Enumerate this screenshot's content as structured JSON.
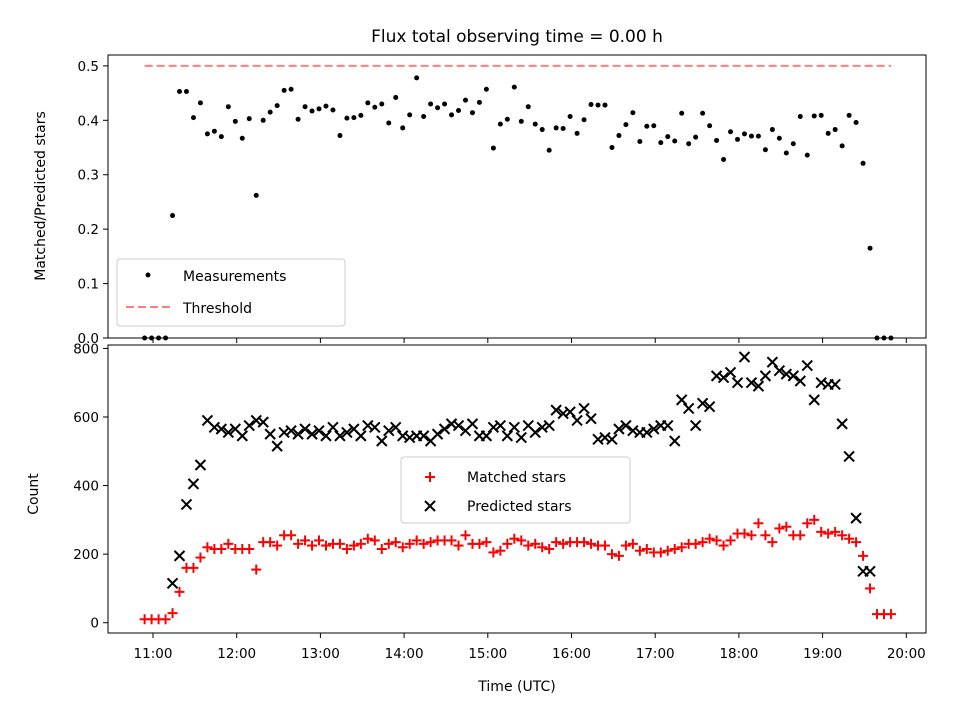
{
  "chart_data": [
    {
      "type": "scatter",
      "title": "Flux total observing time = 0.00 h",
      "ylabel": "Matched/Predicted stars",
      "xlabel": "",
      "ylim": [
        0,
        0.52
      ],
      "yticks": [
        "0.0",
        "0.1",
        "0.2",
        "0.3",
        "0.4",
        "0.5"
      ],
      "legend_position": "lower-left",
      "threshold": {
        "name": "Threshold",
        "value": 0.5,
        "x_start": "10:54",
        "x_end": "19:49",
        "color": "#ff7f7f",
        "style": "dashed"
      },
      "series": [
        {
          "name": "Measurements",
          "color": "#000000",
          "marker": "dot",
          "x": [
            "10:54",
            "10:59",
            "11:04",
            "11:09",
            "11:14",
            "11:19",
            "11:24",
            "11:29",
            "11:34",
            "11:39",
            "11:44",
            "11:49",
            "11:54",
            "11:59",
            "12:04",
            "12:09",
            "12:14",
            "12:19",
            "12:24",
            "12:29",
            "12:34",
            "12:39",
            "12:44",
            "12:49",
            "12:54",
            "12:59",
            "13:04",
            "13:09",
            "13:14",
            "13:19",
            "13:24",
            "13:29",
            "13:34",
            "13:39",
            "13:44",
            "13:49",
            "13:54",
            "13:59",
            "14:04",
            "14:09",
            "14:14",
            "14:19",
            "14:24",
            "14:29",
            "14:34",
            "14:39",
            "14:44",
            "14:49",
            "14:54",
            "14:59",
            "15:04",
            "15:09",
            "15:14",
            "15:19",
            "15:24",
            "15:29",
            "15:34",
            "15:39",
            "15:44",
            "15:49",
            "15:54",
            "15:59",
            "16:04",
            "16:09",
            "16:14",
            "16:19",
            "16:24",
            "16:29",
            "16:34",
            "16:39",
            "16:44",
            "16:49",
            "16:54",
            "16:59",
            "17:04",
            "17:09",
            "17:14",
            "17:19",
            "17:24",
            "17:29",
            "17:34",
            "17:39",
            "17:44",
            "17:49",
            "17:54",
            "17:59",
            "18:04",
            "18:09",
            "18:14",
            "18:19",
            "18:24",
            "18:29",
            "18:34",
            "18:39",
            "18:44",
            "18:49",
            "18:54",
            "18:59",
            "19:04",
            "19:09",
            "19:14",
            "19:19",
            "19:24",
            "19:29",
            "19:34",
            "19:39",
            "19:44",
            "19:49"
          ],
          "values": [
            0.0,
            0.0,
            0.0,
            0.0,
            0.225,
            0.453,
            0.453,
            0.405,
            0.432,
            0.375,
            0.38,
            0.37,
            0.425,
            0.398,
            0.367,
            0.403,
            0.262,
            0.4,
            0.415,
            0.427,
            0.455,
            0.457,
            0.402,
            0.425,
            0.417,
            0.421,
            0.426,
            0.419,
            0.372,
            0.404,
            0.405,
            0.409,
            0.432,
            0.424,
            0.43,
            0.395,
            0.442,
            0.386,
            0.41,
            0.478,
            0.407,
            0.43,
            0.423,
            0.43,
            0.41,
            0.418,
            0.437,
            0.414,
            0.433,
            0.457,
            0.349,
            0.393,
            0.402,
            0.461,
            0.398,
            0.425,
            0.393,
            0.383,
            0.345,
            0.386,
            0.385,
            0.407,
            0.376,
            0.401,
            0.429,
            0.428,
            0.428,
            0.35,
            0.372,
            0.392,
            0.414,
            0.361,
            0.389,
            0.39,
            0.359,
            0.37,
            0.362,
            0.413,
            0.357,
            0.369,
            0.413,
            0.39,
            0.363,
            0.328,
            0.379,
            0.365,
            0.375,
            0.371,
            0.371,
            0.346,
            0.383,
            0.367,
            0.34,
            0.357,
            0.407,
            0.336,
            0.408,
            0.409,
            0.376,
            0.383,
            0.353,
            0.409,
            0.396,
            0.321,
            0.165,
            0.0,
            0.0,
            0.0
          ]
        }
      ]
    },
    {
      "type": "scatter",
      "title": "",
      "xlabel": "Time (UTC)",
      "ylabel": "Count",
      "ylim": [
        -30,
        810
      ],
      "yticks": [
        "0",
        "200",
        "400",
        "600",
        "800"
      ],
      "xlim": [
        "10:25",
        "20:15"
      ],
      "xticks": [
        "11:00",
        "12:00",
        "13:00",
        "14:00",
        "15:00",
        "16:00",
        "17:00",
        "18:00",
        "19:00",
        "20:00"
      ],
      "legend_position": "center",
      "series": [
        {
          "name": "Matched stars",
          "color": "#ff0000",
          "marker": "plus",
          "x": [
            "10:54",
            "10:59",
            "11:04",
            "11:09",
            "11:14",
            "11:19",
            "11:24",
            "11:29",
            "11:34",
            "11:39",
            "11:44",
            "11:49",
            "11:54",
            "11:59",
            "12:04",
            "12:09",
            "12:14",
            "12:19",
            "12:24",
            "12:29",
            "12:34",
            "12:39",
            "12:44",
            "12:49",
            "12:54",
            "12:59",
            "13:04",
            "13:09",
            "13:14",
            "13:19",
            "13:24",
            "13:29",
            "13:34",
            "13:39",
            "13:44",
            "13:49",
            "13:54",
            "13:59",
            "14:04",
            "14:09",
            "14:14",
            "14:19",
            "14:24",
            "14:29",
            "14:34",
            "14:39",
            "14:44",
            "14:49",
            "14:54",
            "14:59",
            "15:04",
            "15:09",
            "15:14",
            "15:19",
            "15:24",
            "15:29",
            "15:34",
            "15:39",
            "15:44",
            "15:49",
            "15:54",
            "15:59",
            "16:04",
            "16:09",
            "16:14",
            "16:19",
            "16:24",
            "16:29",
            "16:34",
            "16:39",
            "16:44",
            "16:49",
            "16:54",
            "16:59",
            "17:04",
            "17:09",
            "17:14",
            "17:19",
            "17:24",
            "17:29",
            "17:34",
            "17:39",
            "17:44",
            "17:49",
            "17:54",
            "17:59",
            "18:04",
            "18:09",
            "18:14",
            "18:19",
            "18:24",
            "18:29",
            "18:34",
            "18:39",
            "18:44",
            "18:49",
            "18:54",
            "18:59",
            "19:04",
            "19:09",
            "19:14",
            "19:19",
            "19:24",
            "19:29",
            "19:34",
            "19:39",
            "19:44",
            "19:49"
          ],
          "values": [
            10,
            10,
            10,
            10,
            28,
            90,
            160,
            160,
            190,
            220,
            215,
            215,
            230,
            215,
            215,
            215,
            155,
            235,
            235,
            225,
            255,
            255,
            230,
            240,
            225,
            240,
            225,
            230,
            230,
            215,
            225,
            230,
            245,
            240,
            215,
            230,
            235,
            220,
            230,
            240,
            230,
            235,
            240,
            240,
            240,
            225,
            255,
            230,
            230,
            235,
            205,
            210,
            230,
            245,
            240,
            225,
            230,
            220,
            215,
            235,
            230,
            235,
            235,
            235,
            230,
            225,
            225,
            200,
            195,
            225,
            230,
            210,
            215,
            205,
            205,
            210,
            215,
            220,
            230,
            230,
            235,
            245,
            240,
            225,
            240,
            260,
            260,
            255,
            290,
            255,
            235,
            275,
            280,
            255,
            255,
            290,
            300,
            265,
            260,
            265,
            255,
            245,
            235,
            195,
            100,
            25,
            25,
            25
          ]
        },
        {
          "name": "Predicted stars",
          "color": "#000000",
          "marker": "x",
          "x": [
            "11:14",
            "11:19",
            "11:24",
            "11:29",
            "11:34",
            "11:39",
            "11:44",
            "11:49",
            "11:54",
            "11:59",
            "12:04",
            "12:09",
            "12:14",
            "12:19",
            "12:24",
            "12:29",
            "12:34",
            "12:39",
            "12:44",
            "12:49",
            "12:54",
            "12:59",
            "13:04",
            "13:09",
            "13:14",
            "13:19",
            "13:24",
            "13:29",
            "13:34",
            "13:39",
            "13:44",
            "13:49",
            "13:54",
            "13:59",
            "14:04",
            "14:09",
            "14:14",
            "14:19",
            "14:24",
            "14:29",
            "14:34",
            "14:39",
            "14:44",
            "14:49",
            "14:54",
            "14:59",
            "15:04",
            "15:09",
            "15:14",
            "15:19",
            "15:24",
            "15:29",
            "15:34",
            "15:39",
            "15:44",
            "15:49",
            "15:54",
            "15:59",
            "16:04",
            "16:09",
            "16:14",
            "16:19",
            "16:24",
            "16:29",
            "16:34",
            "16:39",
            "16:44",
            "16:49",
            "16:54",
            "16:59",
            "17:04",
            "17:09",
            "17:14",
            "17:19",
            "17:24",
            "17:29",
            "17:34",
            "17:39",
            "17:44",
            "17:49",
            "17:54",
            "17:59",
            "18:04",
            "18:09",
            "18:14",
            "18:19",
            "18:24",
            "18:29",
            "18:34",
            "18:39",
            "18:44",
            "18:49",
            "18:54",
            "18:59",
            "19:04",
            "19:09",
            "19:14",
            "19:19",
            "19:24",
            "19:29",
            "19:34"
          ],
          "values": [
            115,
            195,
            345,
            405,
            460,
            590,
            570,
            565,
            555,
            565,
            545,
            575,
            590,
            585,
            550,
            515,
            555,
            560,
            550,
            565,
            550,
            560,
            545,
            570,
            545,
            555,
            565,
            545,
            575,
            570,
            530,
            560,
            570,
            545,
            540,
            545,
            545,
            530,
            550,
            565,
            580,
            575,
            560,
            580,
            545,
            545,
            570,
            575,
            545,
            570,
            540,
            575,
            555,
            570,
            575,
            620,
            610,
            615,
            590,
            625,
            595,
            535,
            540,
            535,
            565,
            575,
            560,
            555,
            555,
            565,
            575,
            575,
            530,
            650,
            625,
            575,
            640,
            630,
            720,
            715,
            730,
            700,
            775,
            700,
            690,
            720,
            760,
            735,
            725,
            720,
            705,
            750,
            650,
            700,
            695,
            695,
            580,
            485,
            305,
            150,
            150
          ]
        }
      ]
    }
  ]
}
